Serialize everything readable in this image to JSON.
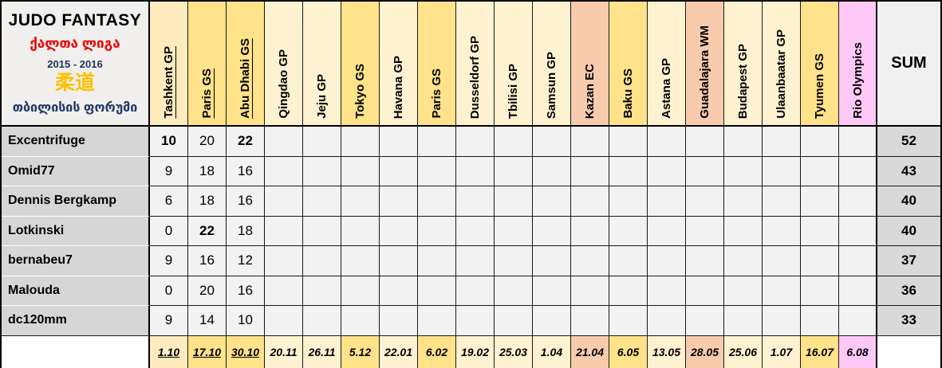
{
  "title": {
    "line1": "JUDO FANTASY",
    "line2": "ქალთა ლიგა",
    "line3": "2015 - 2016",
    "line4": "柔道",
    "line5": "თბილისის ფორუმი"
  },
  "sum_label": "SUM",
  "colors": {
    "completed_gp": "#FFEBBE",
    "gp": "#FFF2D1",
    "gs": "#FFE289",
    "ec": "#F8CBAD",
    "olympics": "#FFC9F7",
    "name_cell": "#D6D6D6",
    "sum_cell": "#D9D9D9",
    "empty_cell": "#F2F2F2",
    "header_cell": "#F0EFED",
    "sum_header": "#F0F0F0",
    "grid_line": "#1a1a1a",
    "outer_border": "#000000",
    "title_red": "#F00000",
    "title_gold": "#FFC000",
    "title_blue": "#1F3864",
    "title_navy": "#1F3252"
  },
  "columns": [
    {
      "label": "Tashkent GP",
      "date": "1.10",
      "type": "completed_gp",
      "underline": true
    },
    {
      "label": "Paris GS",
      "date": "17.10",
      "type": "gs",
      "underline": true
    },
    {
      "label": "Abu Dhabi GS",
      "date": "30.10",
      "type": "gs",
      "underline": true
    },
    {
      "label": "Qingdao GP",
      "date": "20.11",
      "type": "gp",
      "underline": false
    },
    {
      "label": "Jeju GP",
      "date": "26.11",
      "type": "gp",
      "underline": false
    },
    {
      "label": "Tokyo GS",
      "date": "5.12",
      "type": "gs",
      "underline": false
    },
    {
      "label": "Havana GP",
      "date": "22.01",
      "type": "gp",
      "underline": false
    },
    {
      "label": "Paris GS",
      "date": "6.02",
      "type": "gs",
      "underline": false
    },
    {
      "label": "Dusseldorf GP",
      "date": "19.02",
      "type": "gp",
      "underline": false
    },
    {
      "label": "Tbilisi GP",
      "date": "25.03",
      "type": "gp",
      "underline": false
    },
    {
      "label": "Samsun GP",
      "date": "1.04",
      "type": "gp",
      "underline": false
    },
    {
      "label": "Kazan EC",
      "date": "21.04",
      "type": "ec",
      "underline": false
    },
    {
      "label": "Baku GS",
      "date": "6.05",
      "type": "gs",
      "underline": false
    },
    {
      "label": "Astana GP",
      "date": "13.05",
      "type": "gp",
      "underline": false
    },
    {
      "label": "Guadalajara WM",
      "date": "28.05",
      "type": "ec",
      "underline": false
    },
    {
      "label": "Budapest GP",
      "date": "25.06",
      "type": "gp",
      "underline": false
    },
    {
      "label": "Ulaanbaatar GP",
      "date": "1.07",
      "type": "gp",
      "underline": false
    },
    {
      "label": "Tyumen GS",
      "date": "16.07",
      "type": "gs",
      "underline": false
    },
    {
      "label": "Rio Olympics",
      "date": "6.08",
      "type": "olympics",
      "underline": false
    }
  ],
  "rows": [
    {
      "name": "Excentrifuge",
      "scores": [
        "10",
        "20",
        "22"
      ],
      "bold": [
        0,
        2
      ],
      "sum": "52"
    },
    {
      "name": "Omid77",
      "scores": [
        "9",
        "18",
        "16"
      ],
      "bold": [],
      "sum": "43"
    },
    {
      "name": "Dennis Bergkamp",
      "scores": [
        "6",
        "18",
        "16"
      ],
      "bold": [],
      "sum": "40"
    },
    {
      "name": "Lotkinski",
      "scores": [
        "0",
        "22",
        "18"
      ],
      "bold": [
        1
      ],
      "sum": "40"
    },
    {
      "name": "bernabeu7",
      "scores": [
        "9",
        "16",
        "12"
      ],
      "bold": [],
      "sum": "37"
    },
    {
      "name": "Malouda",
      "scores": [
        "0",
        "20",
        "16"
      ],
      "bold": [],
      "sum": "36"
    },
    {
      "name": "dc120mm",
      "scores": [
        "9",
        "14",
        "10"
      ],
      "bold": [],
      "sum": "33"
    }
  ]
}
